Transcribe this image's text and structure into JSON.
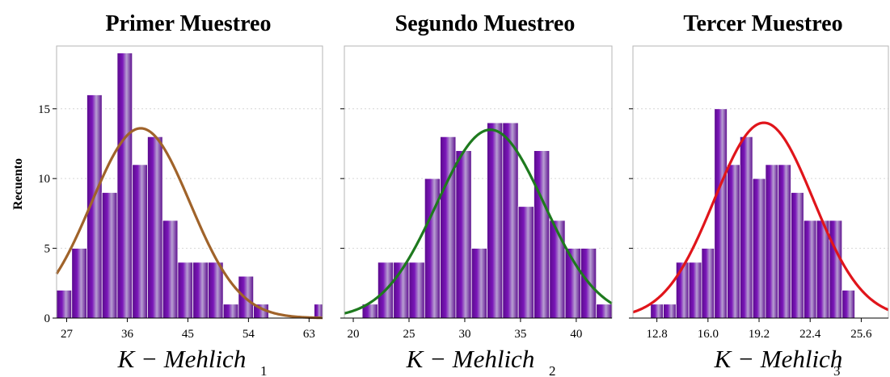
{
  "figure": {
    "ylabel": "Recuento",
    "bar_colors": {
      "dark": "#5a0a8c",
      "mid": "#7a16b8",
      "light": "#b89fd2"
    }
  },
  "chart_data": [
    {
      "type": "bar",
      "title": "Primer Muestreo",
      "xlabel": "K − Mehlich",
      "xlabel_subscript": "1",
      "ylabel": "Recuento",
      "xlim": [
        25.5,
        65
      ],
      "ylim": [
        0,
        19.5
      ],
      "xticks": [
        27,
        36,
        45,
        54,
        63
      ],
      "xtick_labels": [
        "27",
        "36",
        "45",
        "54",
        "63"
      ],
      "yticks": [
        0,
        5,
        10,
        15
      ],
      "ytick_labels": [
        "0",
        "5",
        "10",
        "15"
      ],
      "bin_width": 2.25,
      "bin_starts": [
        25.5,
        27.75,
        30,
        32.25,
        34.5,
        36.75,
        39,
        41.25,
        43.5,
        45.75,
        48,
        50.25,
        52.5,
        54.75,
        57,
        59.25,
        61.5,
        63.75
      ],
      "counts": [
        2,
        5,
        16,
        9,
        19,
        11,
        13,
        7,
        4,
        4,
        4,
        1,
        3,
        1,
        0,
        0,
        0,
        1
      ],
      "curve": {
        "mean": 38,
        "sd": 7.33,
        "peak": 13.6,
        "color": "#a0632a"
      }
    },
    {
      "type": "bar",
      "title": "Segundo Muestreo",
      "xlabel": "K − Mehlich",
      "xlabel_subscript": "2",
      "ylabel": "Recuento",
      "xlim": [
        19.2,
        43.2
      ],
      "ylim": [
        0,
        19.5
      ],
      "xticks": [
        20,
        25,
        30,
        35,
        40
      ],
      "xtick_labels": [
        "20",
        "25",
        "30",
        "35",
        "40"
      ],
      "yticks": [
        0,
        5,
        10,
        15
      ],
      "ytick_labels": [
        "",
        "",
        "",
        ""
      ],
      "bin_width": 1.4,
      "bin_starts": [
        20.8,
        22.2,
        23.6,
        25,
        26.4,
        27.8,
        29.2,
        30.6,
        32,
        33.4,
        34.8,
        36.2,
        37.6,
        39,
        40.4,
        41.8
      ],
      "counts": [
        1,
        4,
        4,
        4,
        10,
        13,
        12,
        5,
        14,
        14,
        8,
        12,
        7,
        5,
        5,
        1
      ],
      "curve": {
        "mean": 32.3,
        "sd": 4.82,
        "peak": 13.5,
        "color": "#1e7a1e"
      }
    },
    {
      "type": "bar",
      "title": "Tercer Muestreo",
      "xlabel": "K − Mehlich",
      "xlabel_subscript": "3",
      "ylabel": "Recuento",
      "xlim": [
        11.3,
        27.3
      ],
      "ylim": [
        0,
        19.5
      ],
      "xticks": [
        12.8,
        16.0,
        19.2,
        22.4,
        25.6
      ],
      "xtick_labels": [
        "12.8",
        "16.0",
        "19.2",
        "22.4",
        "25.6"
      ],
      "yticks": [
        0,
        5,
        10,
        15
      ],
      "ytick_labels": [
        "",
        "",
        "",
        ""
      ],
      "bin_width": 0.8,
      "bin_starts": [
        12.4,
        13.2,
        14.0,
        14.8,
        15.6,
        16.4,
        17.2,
        18.0,
        18.8,
        19.6,
        20.4,
        21.2,
        22.0,
        22.8,
        23.6,
        24.4,
        25.2
      ],
      "counts": [
        1,
        1,
        4,
        4,
        5,
        15,
        11,
        13,
        10,
        11,
        11,
        9,
        7,
        7,
        7,
        2,
        0
      ],
      "curve": {
        "mean": 19.5,
        "sd": 3.1,
        "peak": 14.0,
        "color": "#e0151b"
      }
    }
  ]
}
